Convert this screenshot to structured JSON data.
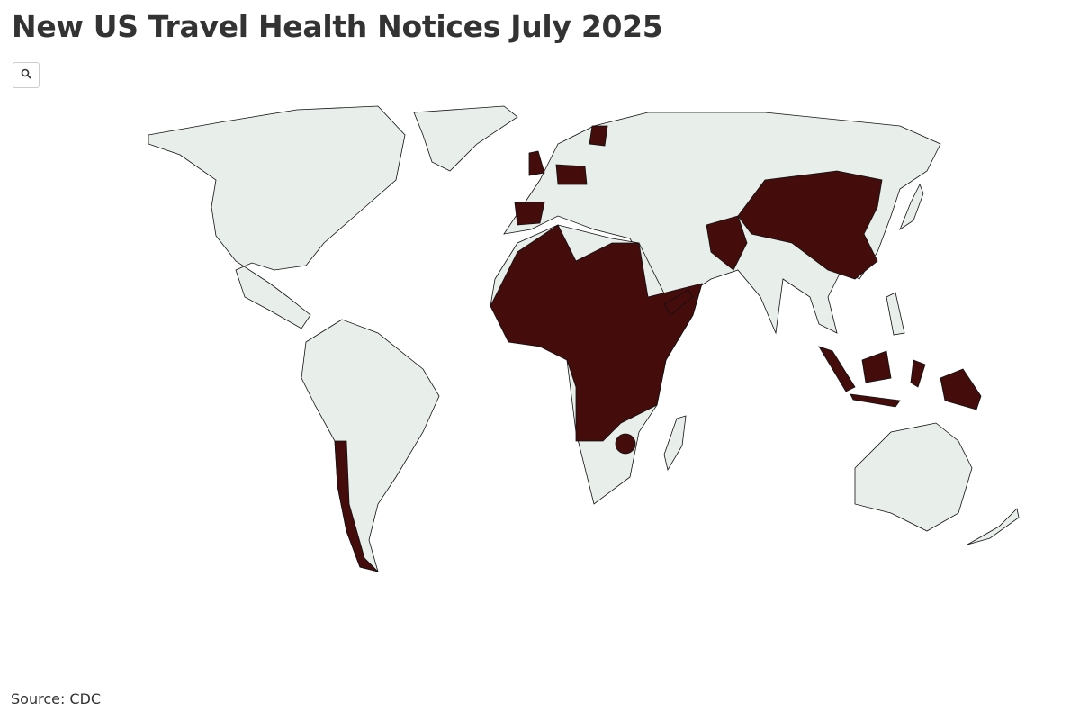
{
  "title": "New US Travel Health Notices July 2025",
  "source": "Source: CDC"
}
